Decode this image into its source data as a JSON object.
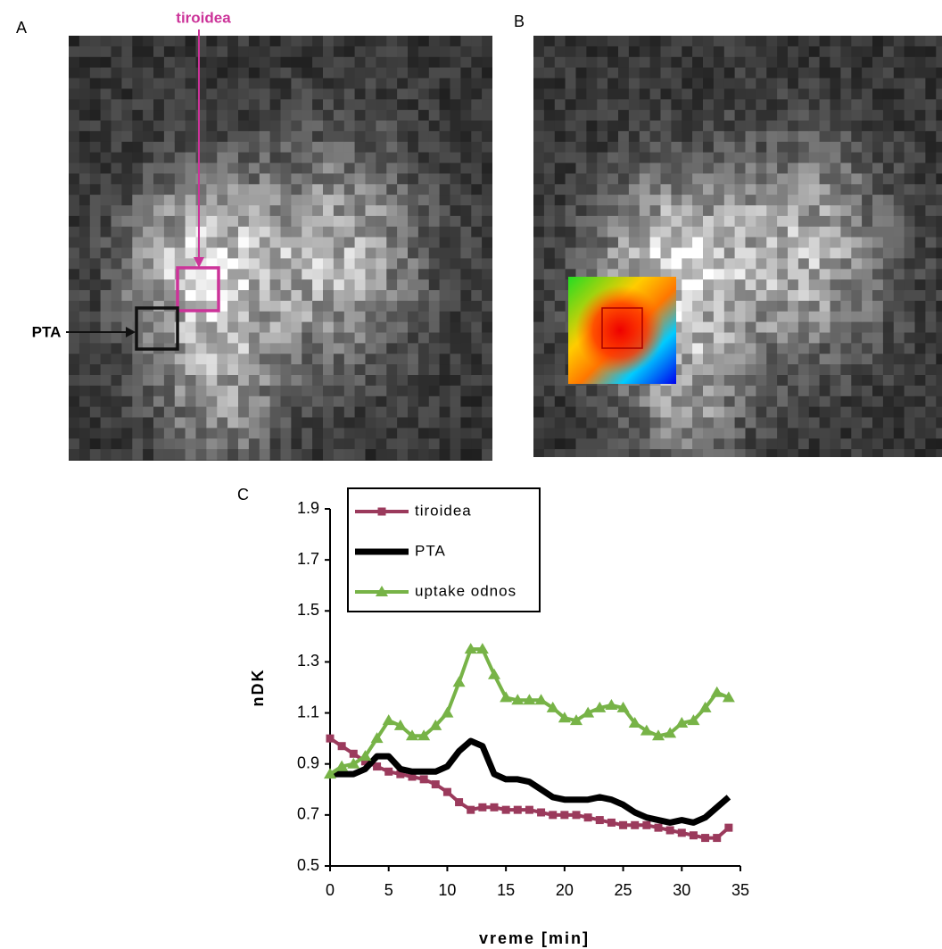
{
  "panel_labels": [
    "A",
    "B",
    "C"
  ],
  "annotations": {
    "thyroid": "tiroidea",
    "pta": "PTA"
  },
  "chart_data": {
    "type": "line",
    "x_label": "vreme [min]",
    "y_label": "nDK",
    "x": [
      0,
      1,
      2,
      3,
      4,
      5,
      6,
      7,
      8,
      9,
      10,
      11,
      12,
      13,
      14,
      15,
      16,
      17,
      18,
      19,
      20,
      21,
      22,
      23,
      24,
      25,
      26,
      27,
      28,
      29,
      30,
      31,
      32,
      33,
      34
    ],
    "series": [
      {
        "name": "tiroidea",
        "color": "#9b3a5c",
        "marker": "square",
        "values": [
          1.0,
          0.97,
          0.94,
          0.91,
          0.89,
          0.87,
          0.86,
          0.85,
          0.84,
          0.82,
          0.79,
          0.75,
          0.72,
          0.73,
          0.73,
          0.72,
          0.72,
          0.72,
          0.71,
          0.7,
          0.7,
          0.7,
          0.69,
          0.68,
          0.67,
          0.66,
          0.66,
          0.66,
          0.65,
          0.64,
          0.63,
          0.62,
          0.61,
          0.61,
          0.65
        ]
      },
      {
        "name": "PTA",
        "color": "#000000",
        "marker": "none",
        "values": [
          0.86,
          0.86,
          0.86,
          0.88,
          0.93,
          0.93,
          0.88,
          0.87,
          0.87,
          0.87,
          0.89,
          0.95,
          0.99,
          0.97,
          0.86,
          0.84,
          0.84,
          0.83,
          0.8,
          0.77,
          0.76,
          0.76,
          0.76,
          0.77,
          0.76,
          0.74,
          0.71,
          0.69,
          0.68,
          0.67,
          0.68,
          0.67,
          0.69,
          0.73,
          0.77
        ]
      },
      {
        "name": "uptake odnos",
        "color": "#77b347",
        "marker": "triangle",
        "values": [
          0.86,
          0.89,
          0.9,
          0.93,
          1.0,
          1.07,
          1.05,
          1.01,
          1.01,
          1.05,
          1.1,
          1.22,
          1.35,
          1.35,
          1.25,
          1.16,
          1.15,
          1.15,
          1.15,
          1.12,
          1.08,
          1.07,
          1.1,
          1.12,
          1.13,
          1.12,
          1.06,
          1.03,
          1.01,
          1.02,
          1.06,
          1.07,
          1.12,
          1.18,
          1.16
        ]
      }
    ],
    "xlim": [
      0,
      35
    ],
    "xticks": [
      0,
      5,
      10,
      15,
      20,
      25,
      30,
      35
    ],
    "ylim": [
      0.5,
      1.9
    ],
    "yticks": [
      0.5,
      0.7,
      0.9,
      1.1,
      1.3,
      1.5,
      1.7,
      1.9
    ],
    "legend": "upper left",
    "grid": false
  }
}
